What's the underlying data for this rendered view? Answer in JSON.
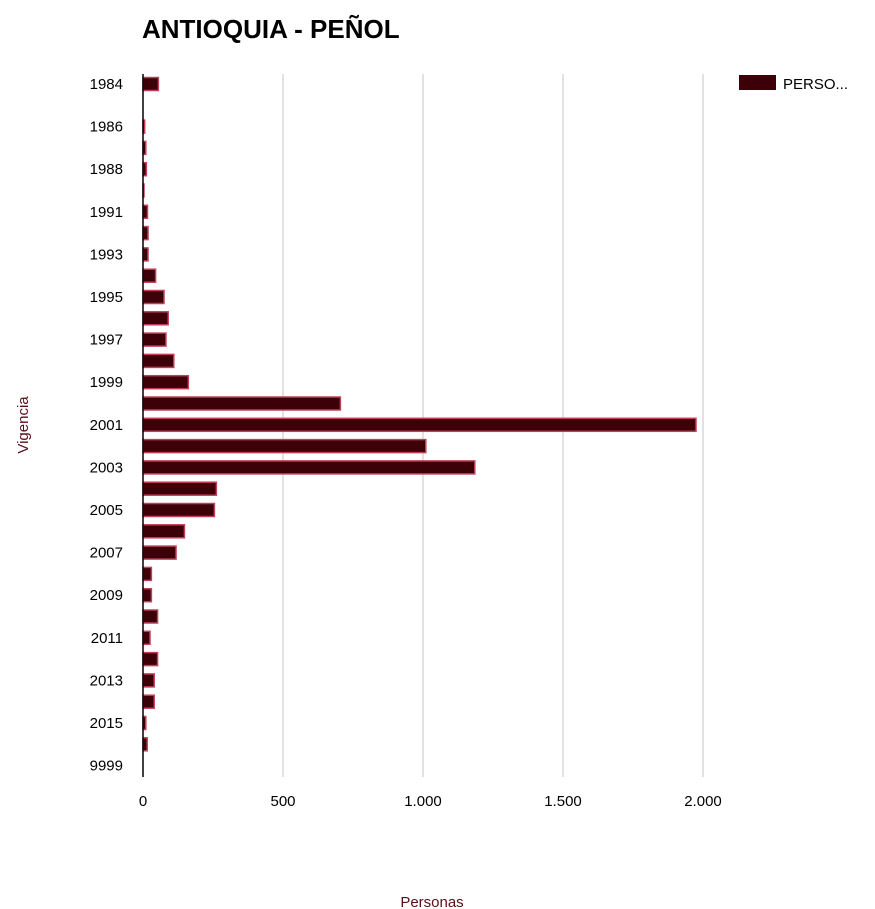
{
  "chart_data": {
    "type": "bar",
    "orientation": "horizontal",
    "title": "ANTIOQUIA - PEÑOL",
    "xlabel": "Personas",
    "ylabel": "Vigencia",
    "xlim": [
      0,
      2200
    ],
    "x_ticks": [
      0,
      500,
      1000,
      1500,
      2000
    ],
    "x_tick_labels": [
      "0",
      "500",
      "1.000",
      "1.500",
      "2.000"
    ],
    "grid": true,
    "legend_position": "top-right",
    "categories": [
      "1984",
      "1985",
      "1986",
      "1987",
      "1988",
      "1990",
      "1991",
      "1992",
      "1993",
      "1994",
      "1995",
      "1996",
      "1997",
      "1998",
      "1999",
      "2000",
      "2001",
      "2002",
      "2003",
      "2004",
      "2005",
      "2006",
      "2007",
      "2008",
      "2009",
      "2010",
      "2011",
      "2012",
      "2013",
      "2014",
      "2015",
      "2016",
      "9999"
    ],
    "category_labels": [
      "1984",
      "",
      "1986",
      "",
      "1988",
      "",
      "1991",
      "",
      "1993",
      "",
      "1995",
      "",
      "1997",
      "",
      "1999",
      "",
      "2001",
      "",
      "2003",
      "",
      "2005",
      "",
      "2007",
      "",
      "2009",
      "",
      "2011",
      "",
      "2013",
      "",
      "2015",
      "",
      "9999"
    ],
    "series": [
      {
        "name": "PERSO...",
        "color": "#3d0008",
        "values": [
          55,
          0,
          6,
          10,
          12,
          2,
          16,
          18,
          18,
          45,
          75,
          90,
          82,
          110,
          162,
          705,
          1975,
          1010,
          1185,
          262,
          255,
          148,
          118,
          30,
          30,
          52,
          25,
          52,
          40,
          40,
          10,
          15,
          0
        ]
      }
    ]
  }
}
